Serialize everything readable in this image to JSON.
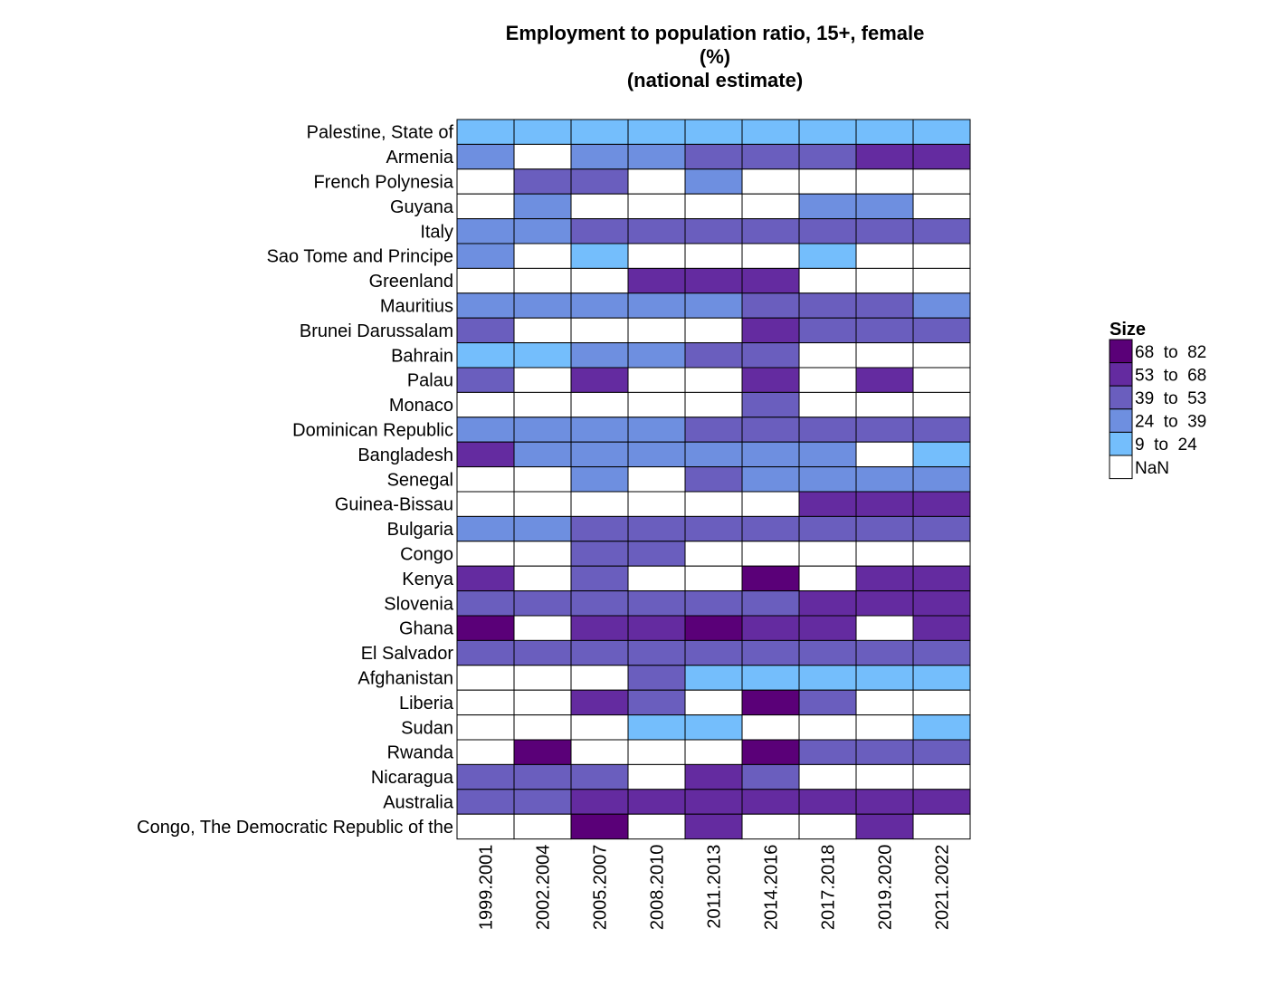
{
  "chart_data": {
    "type": "heatmap",
    "title_lines": [
      "Employment to population ratio, 15+, female",
      "(%)",
      "(national estimate)"
    ],
    "x_categories": [
      "1999.2001",
      "2002.2004",
      "2005.2007",
      "2008.2010",
      "2011.2013",
      "2014.2016",
      "2017.2018",
      "2019.2020",
      "2021.2022"
    ],
    "y_categories": [
      "Palestine, State of",
      "Armenia",
      "French Polynesia",
      "Guyana",
      "Italy",
      "Sao Tome and Principe",
      "Greenland",
      "Mauritius",
      "Brunei Darussalam",
      "Bahrain",
      "Palau",
      "Monaco",
      "Dominican Republic",
      "Bangladesh",
      "Senegal",
      "Guinea-Bissau",
      "Bulgaria",
      "Congo",
      "Kenya",
      "Slovenia",
      "Ghana",
      "El Salvador",
      "Afghanistan",
      "Liberia",
      "Sudan",
      "Rwanda",
      "Nicaragua",
      "Australia",
      "Congo, The Democratic Republic of the"
    ],
    "bin_index_note": "0 = NaN, 1 = 9 to 24, 2 = 24 to 39, 3 = 39 to 53, 4 = 53 to 68, 5 = 68 to 82",
    "bins": [
      [
        1,
        1,
        1,
        1,
        1,
        1,
        1,
        1,
        1
      ],
      [
        2,
        0,
        2,
        2,
        3,
        3,
        3,
        4,
        4
      ],
      [
        0,
        3,
        3,
        0,
        2,
        0,
        0,
        0,
        0
      ],
      [
        0,
        2,
        0,
        0,
        0,
        0,
        2,
        2,
        0
      ],
      [
        2,
        2,
        3,
        3,
        3,
        3,
        3,
        3,
        3
      ],
      [
        2,
        0,
        1,
        0,
        0,
        0,
        1,
        0,
        0
      ],
      [
        0,
        0,
        0,
        4,
        4,
        4,
        0,
        0,
        0
      ],
      [
        2,
        2,
        2,
        2,
        2,
        3,
        3,
        3,
        2
      ],
      [
        3,
        0,
        0,
        0,
        0,
        4,
        3,
        3,
        3
      ],
      [
        1,
        1,
        2,
        2,
        3,
        3,
        0,
        0,
        0
      ],
      [
        3,
        0,
        4,
        0,
        0,
        4,
        0,
        4,
        0
      ],
      [
        0,
        0,
        0,
        0,
        0,
        3,
        0,
        0,
        0
      ],
      [
        2,
        2,
        2,
        2,
        3,
        3,
        3,
        3,
        3
      ],
      [
        4,
        2,
        2,
        2,
        2,
        2,
        2,
        0,
        1
      ],
      [
        0,
        0,
        2,
        0,
        3,
        2,
        2,
        2,
        2
      ],
      [
        0,
        0,
        0,
        0,
        0,
        0,
        4,
        4,
        4
      ],
      [
        2,
        2,
        3,
        3,
        3,
        3,
        3,
        3,
        3
      ],
      [
        0,
        0,
        3,
        3,
        0,
        0,
        0,
        0,
        0
      ],
      [
        4,
        0,
        3,
        0,
        0,
        5,
        0,
        4,
        4
      ],
      [
        3,
        3,
        3,
        3,
        3,
        3,
        4,
        4,
        4
      ],
      [
        5,
        0,
        4,
        4,
        5,
        4,
        4,
        0,
        4
      ],
      [
        3,
        3,
        3,
        3,
        3,
        3,
        3,
        3,
        3
      ],
      [
        0,
        0,
        0,
        3,
        1,
        1,
        1,
        1,
        1
      ],
      [
        0,
        0,
        4,
        3,
        0,
        5,
        3,
        0,
        0
      ],
      [
        0,
        0,
        0,
        1,
        1,
        0,
        0,
        0,
        1
      ],
      [
        0,
        5,
        0,
        0,
        0,
        5,
        3,
        3,
        3
      ],
      [
        3,
        3,
        3,
        0,
        4,
        3,
        0,
        0,
        0
      ],
      [
        3,
        3,
        4,
        4,
        4,
        4,
        4,
        4,
        4
      ],
      [
        0,
        0,
        5,
        0,
        4,
        0,
        0,
        4,
        0
      ]
    ],
    "legend": {
      "title": "Size",
      "placement": "right",
      "entries": [
        {
          "label": "68  to  82",
          "color": "#5a0078"
        },
        {
          "label": "53  to  68",
          "color": "#642ba0"
        },
        {
          "label": "39  to  53",
          "color": "#6a5ebe"
        },
        {
          "label": "24  to  39",
          "color": "#6e8fe0"
        },
        {
          "label": "9  to  24",
          "color": "#74befc"
        },
        {
          "label": "NaN",
          "color": "#ffffff"
        }
      ]
    },
    "bin_colors": [
      "#ffffff",
      "#74befc",
      "#6e8fe0",
      "#6a5ebe",
      "#642ba0",
      "#5a0078"
    ]
  }
}
